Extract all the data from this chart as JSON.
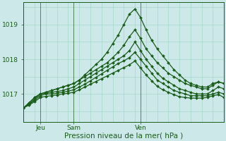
{
  "title": "",
  "xlabel": "Pression niveau de la mer( hPa )",
  "bg_color": "#cce8e8",
  "line_color": "#1a5c1a",
  "grid_color": "#a8d8c8",
  "ylim": [
    1016.2,
    1019.65
  ],
  "xlim": [
    0,
    72
  ],
  "yticks": [
    1017,
    1018,
    1019
  ],
  "xtick_positions": [
    6,
    18,
    42
  ],
  "xtick_labels": [
    "Jeu",
    "Sam",
    "Ven"
  ],
  "vline_positions": [
    6,
    18,
    42
  ],
  "series": [
    {
      "x": [
        0,
        2,
        4,
        6,
        8,
        10,
        12,
        14,
        16,
        18,
        20,
        22,
        24,
        26,
        28,
        30,
        32,
        34,
        36,
        38,
        40,
        42,
        44,
        46,
        48,
        50,
        52,
        54,
        56,
        58,
        60,
        62,
        64,
        66,
        68,
        70,
        72
      ],
      "y": [
        1016.6,
        1016.75,
        1016.9,
        1017.0,
        1017.05,
        1017.1,
        1017.15,
        1017.2,
        1017.25,
        1017.3,
        1017.4,
        1017.55,
        1017.7,
        1017.85,
        1018.0,
        1018.2,
        1018.45,
        1018.7,
        1019.0,
        1019.3,
        1019.45,
        1019.2,
        1018.85,
        1018.55,
        1018.3,
        1018.1,
        1017.9,
        1017.7,
        1017.55,
        1017.4,
        1017.3,
        1017.25,
        1017.2,
        1017.2,
        1017.3,
        1017.35,
        1017.3
      ]
    },
    {
      "x": [
        0,
        2,
        4,
        6,
        8,
        10,
        12,
        14,
        16,
        18,
        20,
        22,
        24,
        26,
        28,
        30,
        32,
        34,
        36,
        38,
        40,
        42,
        44,
        46,
        48,
        50,
        52,
        54,
        56,
        58,
        60,
        62,
        64,
        66,
        68,
        70,
        72
      ],
      "y": [
        1016.6,
        1016.75,
        1016.9,
        1017.0,
        1017.05,
        1017.1,
        1017.15,
        1017.2,
        1017.25,
        1017.3,
        1017.4,
        1017.5,
        1017.6,
        1017.7,
        1017.8,
        1017.9,
        1018.05,
        1018.2,
        1018.4,
        1018.65,
        1018.85,
        1018.6,
        1018.3,
        1018.1,
        1017.9,
        1017.75,
        1017.6,
        1017.5,
        1017.4,
        1017.3,
        1017.25,
        1017.2,
        1017.15,
        1017.15,
        1017.25,
        1017.35,
        1017.3
      ]
    },
    {
      "x": [
        0,
        2,
        4,
        6,
        8,
        10,
        12,
        14,
        16,
        18,
        20,
        22,
        24,
        26,
        28,
        30,
        32,
        34,
        36,
        38,
        40,
        42,
        44,
        46,
        48,
        50,
        52,
        54,
        56,
        58,
        60,
        62,
        64,
        66,
        68,
        70,
        72
      ],
      "y": [
        1016.6,
        1016.72,
        1016.85,
        1017.0,
        1017.02,
        1017.05,
        1017.07,
        1017.1,
        1017.15,
        1017.2,
        1017.3,
        1017.4,
        1017.5,
        1017.6,
        1017.7,
        1017.8,
        1017.9,
        1018.0,
        1018.1,
        1018.25,
        1018.5,
        1018.25,
        1018.0,
        1017.8,
        1017.6,
        1017.45,
        1017.35,
        1017.25,
        1017.15,
        1017.1,
        1017.05,
        1017.0,
        1017.0,
        1017.0,
        1017.1,
        1017.2,
        1017.15
      ]
    },
    {
      "x": [
        0,
        2,
        4,
        6,
        8,
        10,
        12,
        14,
        16,
        18,
        20,
        22,
        24,
        26,
        28,
        30,
        32,
        34,
        36,
        38,
        40,
        42,
        44,
        46,
        48,
        50,
        52,
        54,
        56,
        58,
        60,
        62,
        64,
        66,
        68,
        70,
        72
      ],
      "y": [
        1016.6,
        1016.7,
        1016.82,
        1016.95,
        1017.0,
        1017.0,
        1017.02,
        1017.05,
        1017.08,
        1017.12,
        1017.2,
        1017.28,
        1017.38,
        1017.48,
        1017.58,
        1017.68,
        1017.78,
        1017.88,
        1017.95,
        1018.05,
        1018.2,
        1018.0,
        1017.8,
        1017.6,
        1017.4,
        1017.3,
        1017.2,
        1017.1,
        1017.05,
        1017.0,
        1016.95,
        1016.95,
        1016.95,
        1016.95,
        1017.0,
        1017.05,
        1017.0
      ]
    },
    {
      "x": [
        0,
        2,
        4,
        6,
        8,
        10,
        12,
        14,
        16,
        18,
        20,
        22,
        24,
        26,
        28,
        30,
        32,
        34,
        36,
        38,
        40,
        42,
        44,
        46,
        48,
        50,
        52,
        54,
        56,
        58,
        60,
        62,
        64,
        66,
        68,
        70,
        72
      ],
      "y": [
        1016.6,
        1016.68,
        1016.78,
        1016.9,
        1016.93,
        1016.95,
        1016.97,
        1017.0,
        1017.02,
        1017.05,
        1017.12,
        1017.2,
        1017.28,
        1017.36,
        1017.44,
        1017.52,
        1017.6,
        1017.68,
        1017.76,
        1017.84,
        1017.95,
        1017.75,
        1017.55,
        1017.38,
        1017.22,
        1017.12,
        1017.05,
        1016.98,
        1016.92,
        1016.9,
        1016.88,
        1016.88,
        1016.88,
        1016.9,
        1016.95,
        1016.98,
        1016.9
      ]
    }
  ],
  "marker": "D",
  "markersize": 2.0,
  "linewidth": 0.9
}
